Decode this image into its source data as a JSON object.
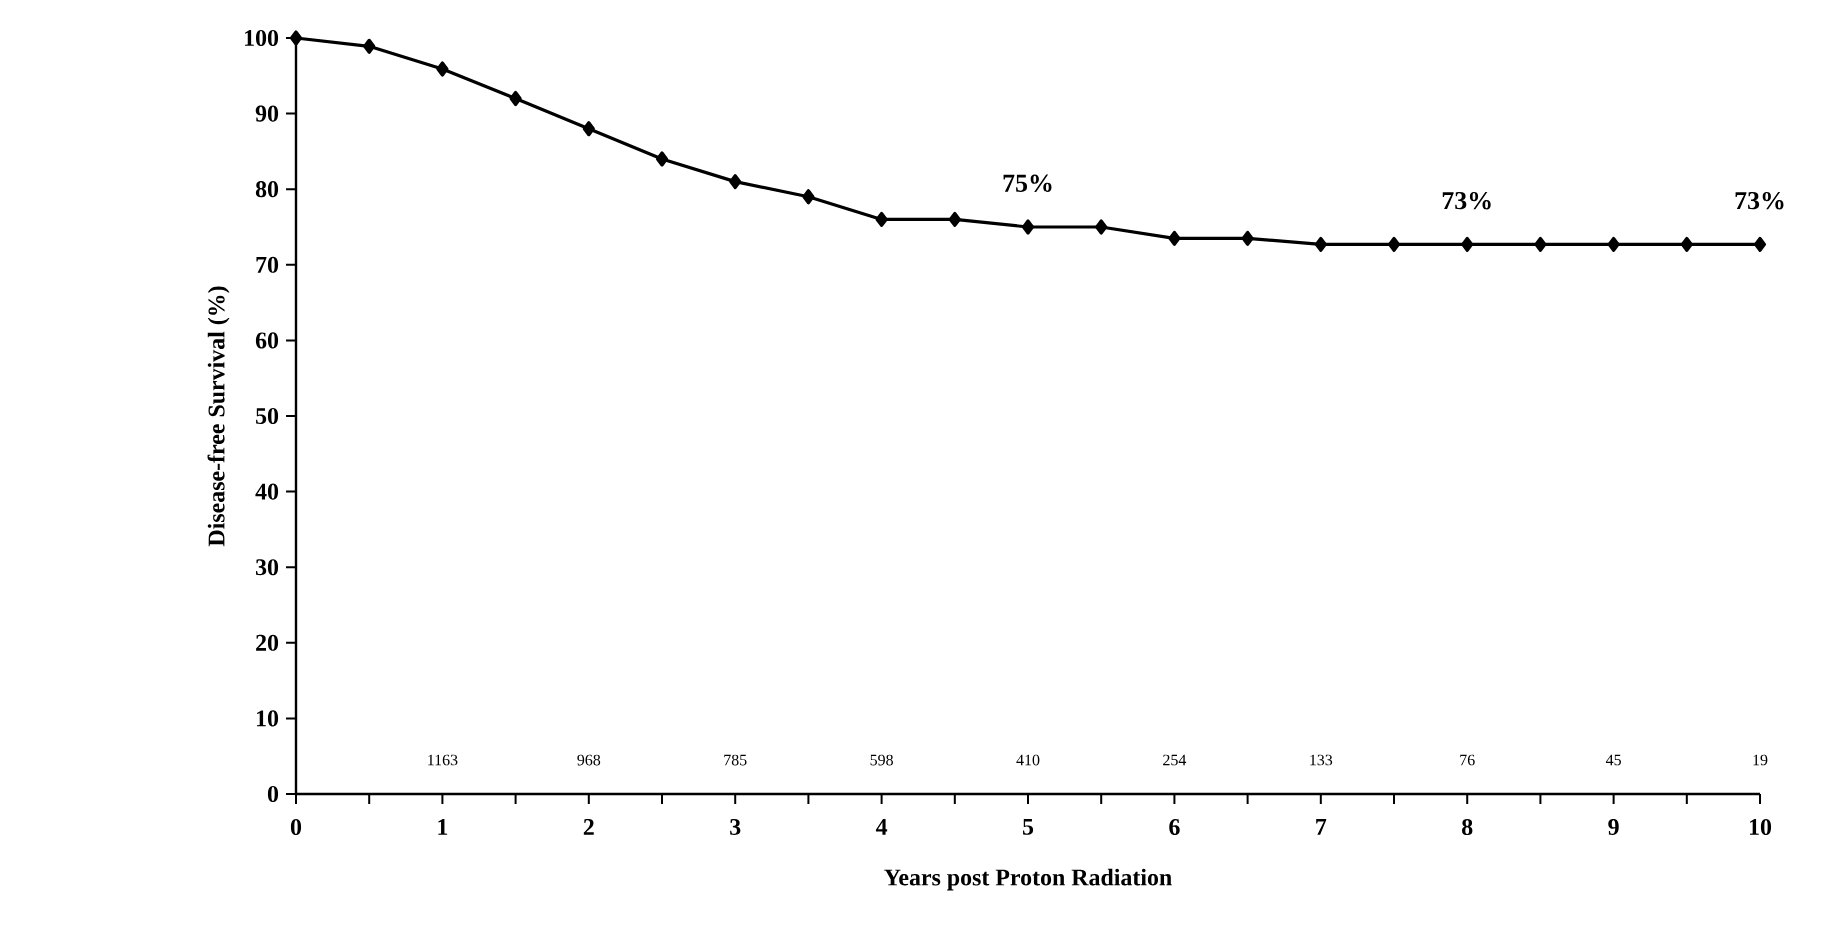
{
  "chart_data": {
    "type": "line",
    "xlabel": "Years post Proton Radiation",
    "ylabel": "Disease-free Survival (%)",
    "x": [
      0,
      0.5,
      1,
      1.5,
      2,
      2.5,
      3,
      3.5,
      4,
      4.5,
      5,
      5.5,
      6,
      6.5,
      7,
      7.5,
      8,
      8.5,
      9,
      9.5,
      10
    ],
    "series": [
      {
        "color": "#000000",
        "values": [
          100,
          98.9,
          95.9,
          92,
          88,
          84,
          81,
          79,
          76,
          76,
          75,
          75,
          73.5,
          73.5,
          72.7,
          72.7,
          72.7,
          72.7,
          72.7,
          72.7,
          72.7
        ]
      }
    ],
    "xlim": [
      0,
      10
    ],
    "ylim": [
      0,
      100
    ],
    "xticks": [
      0,
      {
        "value": 0.5,
        "label": null
      },
      1,
      {
        "value": 1.5,
        "label": null
      },
      2,
      {
        "value": 2.5,
        "label": null
      },
      3,
      {
        "value": 3.5,
        "label": null
      },
      4,
      {
        "value": 4.5,
        "label": null
      },
      5,
      {
        "value": 5.5,
        "label": null
      },
      6,
      {
        "value": 6.5,
        "label": null
      },
      7,
      {
        "value": 7.5,
        "label": null
      },
      8,
      {
        "value": 8.5,
        "label": null
      },
      9,
      {
        "value": 9.5,
        "label": null
      },
      10
    ],
    "yticks": [
      0,
      10,
      20,
      30,
      40,
      50,
      60,
      70,
      80,
      90,
      100
    ],
    "marker": "diamond",
    "line_style": "solid",
    "grid": false,
    "annotations": [
      {
        "text": "75%",
        "x": 5,
        "y": 75
      },
      {
        "text": "73%",
        "x": 8,
        "y": 72.7
      },
      {
        "text": "73%",
        "x": 10,
        "y": 72.7
      },
      "1163",
      "968",
      "785",
      "598",
      "410",
      "254",
      "133",
      "76",
      "45",
      "19"
    ]
  }
}
